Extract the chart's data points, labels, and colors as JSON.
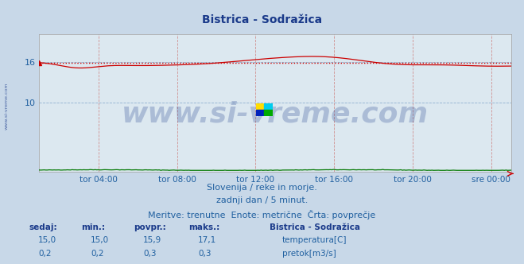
{
  "title": "Bistrica - Sodražica",
  "title_color": "#1a3a8a",
  "bg_color": "#c8d8e8",
  "plot_bg_color": "#dce8f0",
  "grid_color_v": "#d09090",
  "grid_color_h": "#90b0d0",
  "xlabel_color": "#2060a0",
  "ylabel_color": "#2060a0",
  "x_tick_labels": [
    "tor 04:00",
    "tor 08:00",
    "tor 12:00",
    "tor 16:00",
    "tor 20:00",
    "sre 00:00"
  ],
  "x_tick_positions": [
    0.125,
    0.292,
    0.458,
    0.625,
    0.792,
    0.958
  ],
  "ylim": [
    0,
    20
  ],
  "y_ticks": [
    10,
    16
  ],
  "temp_color": "#cc0000",
  "flow_color": "#007700",
  "avg_line_color": "#cc0000",
  "avg_line_style": ":",
  "avg_value": 15.9,
  "watermark_text": "www.si-vreme.com",
  "watermark_color": "#1a3a8a",
  "watermark_alpha": 0.25,
  "watermark_fontsize": 26,
  "left_watermark": "www.si-vreme.com",
  "subtitle1": "Slovenija / reke in morje.",
  "subtitle2": "zadnji dan / 5 minut.",
  "subtitle3": "Meritve: trenutne  Enote: metrične  Črta: povprečje",
  "subtitle_color": "#2060a0",
  "subtitle_fontsize": 8,
  "legend_title": "Bistrica - Sodražica",
  "legend_title_color": "#1a3a8a",
  "legend_items": [
    {
      "label": "temperatura[C]",
      "color": "#cc0000"
    },
    {
      "label": "pretok[m3/s]",
      "color": "#007700"
    }
  ],
  "table_headers": [
    "sedaj:",
    "min.:",
    "povpr.:",
    "maks.:"
  ],
  "table_data": [
    [
      "15,0",
      "15,0",
      "15,9",
      "17,1"
    ],
    [
      "0,2",
      "0,2",
      "0,3",
      "0,3"
    ]
  ],
  "table_color": "#2060a0",
  "table_header_color": "#1a3a8a",
  "n_points": 288,
  "logo_colors": [
    "#ffdd00",
    "#00ccee",
    "#0022bb",
    "#00aa00"
  ]
}
